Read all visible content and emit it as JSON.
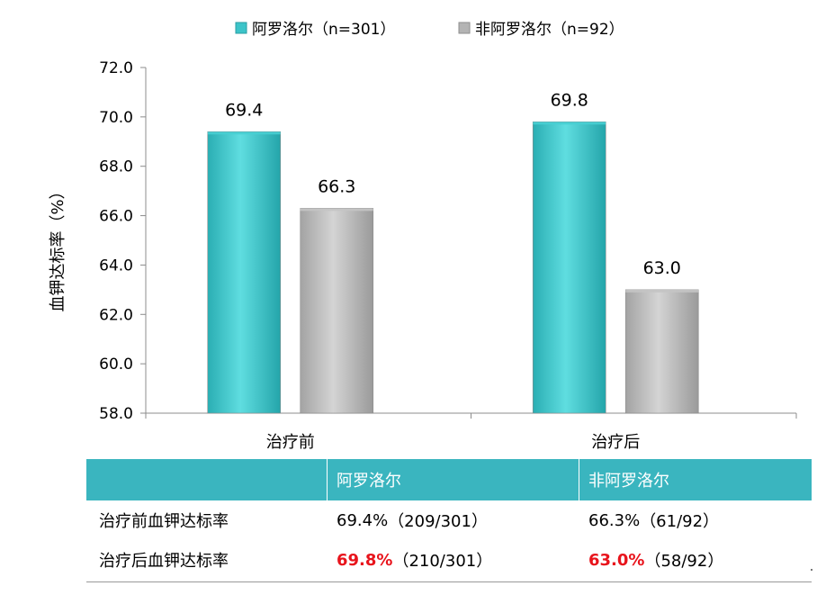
{
  "chart_data": {
    "type": "bar",
    "title": "",
    "xlabel": "",
    "ylabel": "血钾达标率（%）",
    "ylim": [
      58,
      72
    ],
    "ytick_step": 2,
    "categories": [
      "治疗前",
      "治疗后"
    ],
    "series": [
      {
        "name": "阿罗洛尔（n=301）",
        "values": [
          69.4,
          69.8
        ],
        "color": "#3cc4c9"
      },
      {
        "name": "非阿罗洛尔（n=92）",
        "values": [
          66.3,
          63.0
        ],
        "color": "#b4b4b4"
      }
    ],
    "value_format": "0.0",
    "legend": "top",
    "grid": false
  },
  "table": {
    "header": [
      "",
      "阿罗洛尔",
      "非阿罗洛尔"
    ],
    "rows": [
      {
        "label": "治疗前血钾达标率",
        "a_value": "69.4%",
        "a_detail": "（209/301）",
        "b_value": "66.3%",
        "b_detail": "（61/92）",
        "highlight": false
      },
      {
        "label": "治疗后血钾达标率",
        "a_value": "69.8%",
        "a_detail": "（210/301）",
        "b_value": "63.0%",
        "b_detail": "（58/92）",
        "highlight": true
      }
    ],
    "header_color": "#3ab5bf",
    "highlight_color": "#e8141c"
  }
}
